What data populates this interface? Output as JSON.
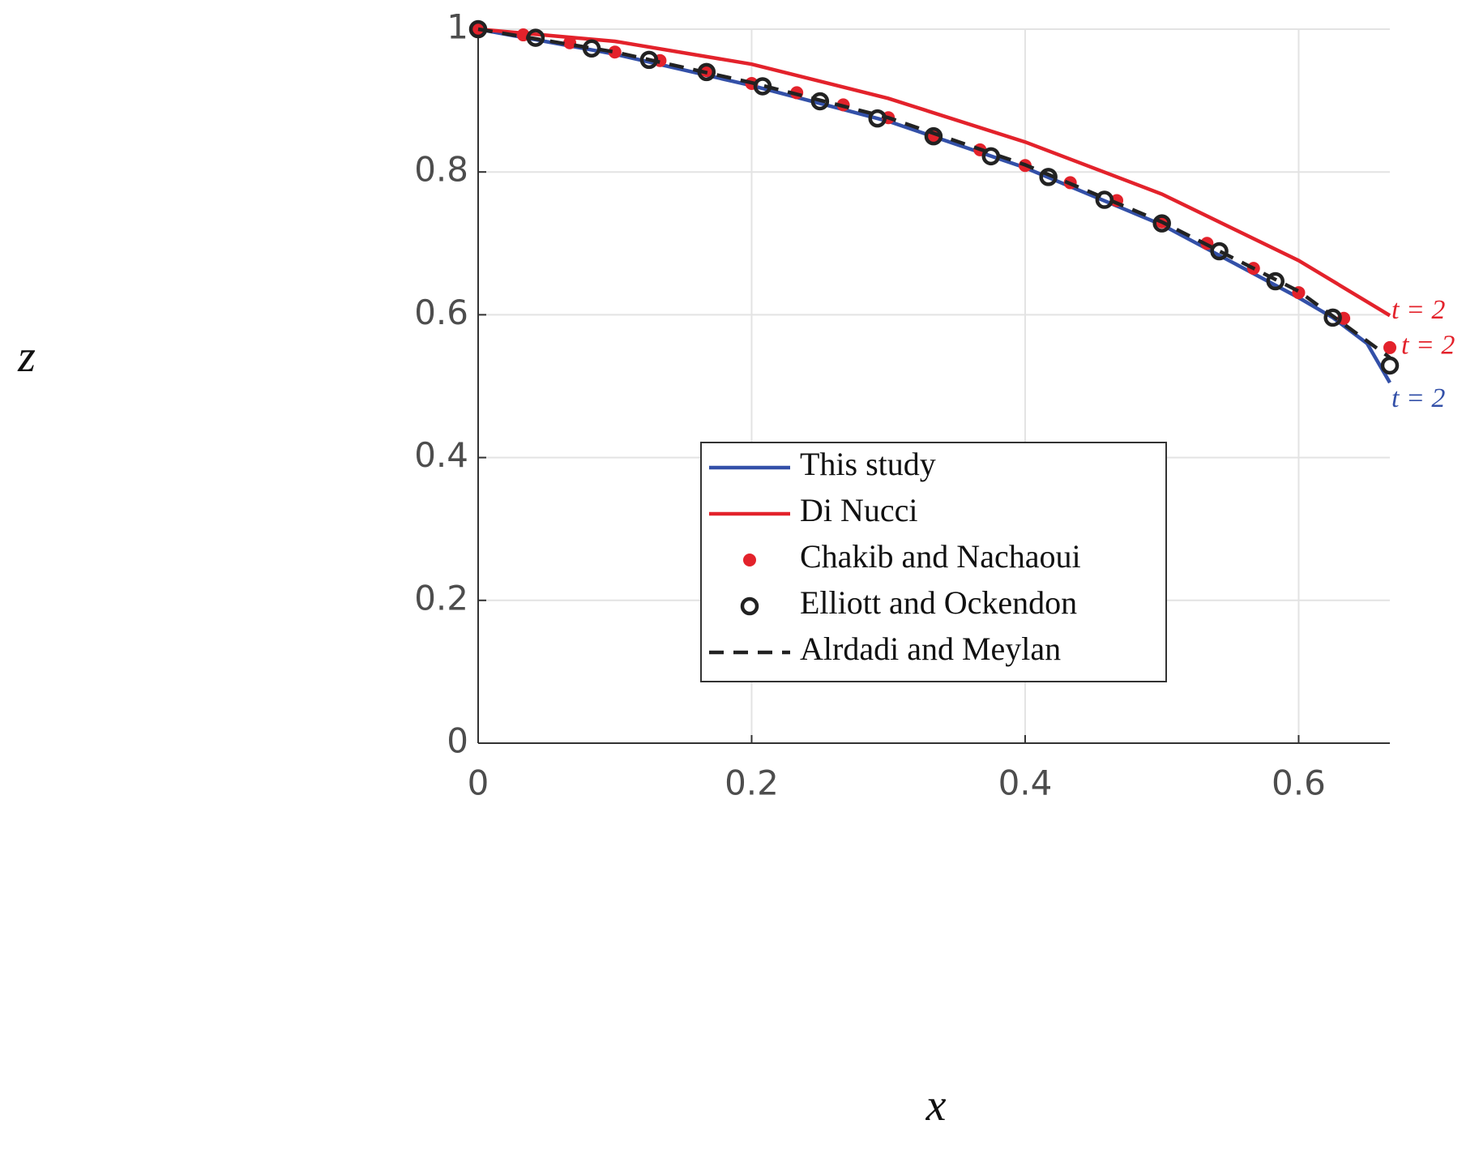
{
  "chart_data": {
    "type": "line",
    "xlabel": "x",
    "ylabel": "z",
    "xlim": [
      0,
      0.6667
    ],
    "ylim": [
      0,
      1
    ],
    "xticks": [
      0,
      0.2,
      0.4,
      0.6
    ],
    "yticks": [
      0,
      0.2,
      0.4,
      0.6,
      0.8,
      1
    ],
    "grid": true,
    "legend": "center",
    "series": [
      {
        "name": "This study",
        "color": "#3350a8",
        "style": "solid",
        "end_label": "t = 2",
        "x": [
          0,
          0.1,
          0.2,
          0.3,
          0.4,
          0.5,
          0.6,
          0.625,
          0.65,
          0.6667
        ],
        "values": [
          1,
          0.965,
          0.921,
          0.871,
          0.806,
          0.726,
          0.624,
          0.596,
          0.56,
          0.505
        ]
      },
      {
        "name": "Di Nucci",
        "color": "#e3222b",
        "style": "solid",
        "end_label": "t = 2",
        "x": [
          0,
          0.1,
          0.2,
          0.3,
          0.4,
          0.5,
          0.6,
          0.6667
        ],
        "values": [
          1,
          0.983,
          0.951,
          0.903,
          0.842,
          0.769,
          0.676,
          0.599
        ]
      },
      {
        "name": "Chakib and Nachaoui",
        "color": "#e3222b",
        "style": "dot",
        "end_label": "t = 2",
        "x": [
          0,
          0.033,
          0.067,
          0.1,
          0.133,
          0.167,
          0.2,
          0.233,
          0.267,
          0.3,
          0.333,
          0.367,
          0.4,
          0.433,
          0.467,
          0.5,
          0.533,
          0.567,
          0.6,
          0.633,
          0.6667
        ],
        "values": [
          1,
          0.992,
          0.981,
          0.968,
          0.956,
          0.942,
          0.924,
          0.911,
          0.894,
          0.876,
          0.851,
          0.831,
          0.809,
          0.785,
          0.76,
          0.73,
          0.7,
          0.665,
          0.631,
          0.595,
          0.554
        ]
      },
      {
        "name": "Elliott and Ockendon",
        "color": "#222222",
        "style": "circle",
        "x": [
          0,
          0.042,
          0.083,
          0.125,
          0.167,
          0.208,
          0.25,
          0.292,
          0.333,
          0.375,
          0.417,
          0.458,
          0.5,
          0.542,
          0.583,
          0.625,
          0.6667
        ],
        "values": [
          1,
          0.988,
          0.973,
          0.957,
          0.94,
          0.92,
          0.899,
          0.875,
          0.85,
          0.822,
          0.793,
          0.761,
          0.728,
          0.689,
          0.647,
          0.596,
          0.529
        ]
      },
      {
        "name": "Alrdadi and Meylan",
        "color": "#222222",
        "style": "dashed",
        "x": [
          0,
          0.1,
          0.2,
          0.3,
          0.4,
          0.5,
          0.6,
          0.6667
        ],
        "values": [
          1,
          0.968,
          0.925,
          0.876,
          0.81,
          0.73,
          0.633,
          0.54
        ]
      }
    ]
  }
}
